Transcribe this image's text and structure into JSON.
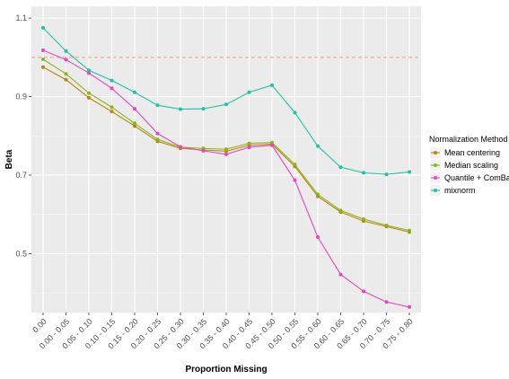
{
  "chart_data": {
    "type": "line",
    "title": "",
    "xlabel": "Proportion Missing",
    "ylabel": "Beta",
    "categories": [
      "0.00",
      "0.00 - 0.05",
      "0.05 - 0.10",
      "0.10 - 0.15",
      "0.15 - 0.20",
      "0.20 - 0.25",
      "0.25 - 0.30",
      "0.30 - 0.35",
      "0.35 - 0.40",
      "0.40 - 0.45",
      "0.45 - 0.50",
      "0.50 - 0.55",
      "0.55 - 0.60",
      "0.60 - 0.65",
      "0.65 - 0.70",
      "0.70 - 0.75",
      "0.75 - 0.80"
    ],
    "ylim": [
      0.35,
      1.13
    ],
    "yticks": [
      0.5,
      0.7,
      0.9,
      1.1
    ],
    "ytick_labels": [
      "0.5",
      "0.7",
      "0.9",
      "1.1"
    ],
    "reference_line": {
      "y": 1.0,
      "color": "#e8a08a",
      "style": "dashed"
    },
    "grid": true,
    "background": "#ebebeb",
    "legend": {
      "title": "Normalization Method",
      "position": "right"
    },
    "series": [
      {
        "name": "Mean centering",
        "color": "#b8860b",
        "values": [
          0.975,
          0.943,
          0.897,
          0.862,
          0.825,
          0.786,
          0.768,
          0.764,
          0.761,
          0.776,
          0.779,
          0.722,
          0.646,
          0.606,
          0.583,
          0.569,
          0.555
        ]
      },
      {
        "name": "Median scaling",
        "color": "#8bb51a",
        "values": [
          0.995,
          0.958,
          0.909,
          0.873,
          0.832,
          0.791,
          0.771,
          0.768,
          0.766,
          0.781,
          0.783,
          0.727,
          0.651,
          0.61,
          0.588,
          0.572,
          0.559
        ]
      },
      {
        "name": "Quantile + ComBat",
        "color": "#e546c2",
        "values": [
          1.018,
          0.994,
          0.96,
          0.921,
          0.869,
          0.806,
          0.772,
          0.762,
          0.753,
          0.771,
          0.776,
          0.687,
          0.542,
          0.447,
          0.404,
          0.377,
          0.364
        ]
      },
      {
        "name": "mixnorm",
        "color": "#1ec3a3",
        "values": [
          1.075,
          1.016,
          0.967,
          0.941,
          0.911,
          0.878,
          0.868,
          0.869,
          0.88,
          0.911,
          0.929,
          0.859,
          0.774,
          0.72,
          0.706,
          0.702,
          0.708
        ]
      }
    ]
  }
}
